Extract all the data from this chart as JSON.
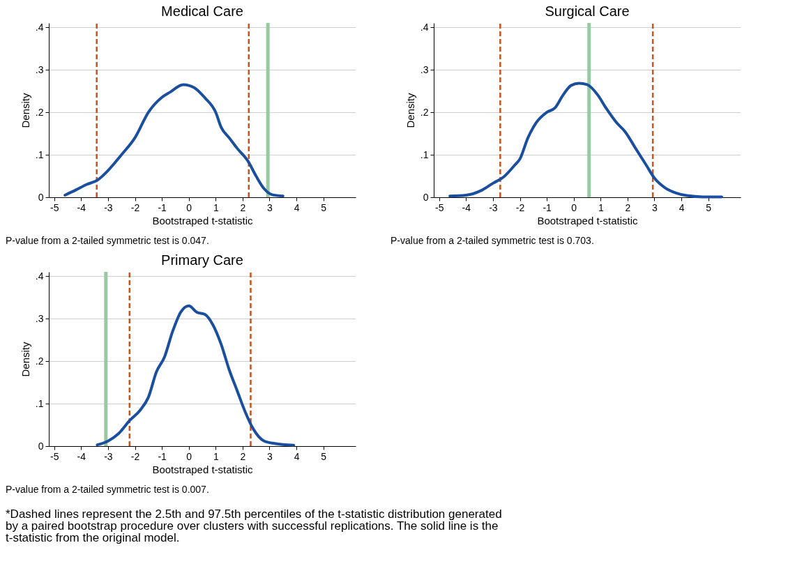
{
  "chart_data": [
    {
      "type": "line",
      "title": "Medical Care",
      "xlabel": "Bootstraped t-statistic",
      "ylabel": "Density",
      "grid": "y",
      "xlim": [
        -5.2,
        6.2
      ],
      "ylim": [
        0,
        0.41
      ],
      "xticks": [
        -5,
        -4,
        -3,
        -2,
        -1,
        0,
        1,
        2,
        3,
        4,
        5
      ],
      "yticks": [
        {
          "value": 0,
          "label": "0"
        },
        {
          "value": 0.1,
          "label": ".1"
        },
        {
          "value": 0.2,
          "label": ".2"
        },
        {
          "value": 0.3,
          "label": ".3"
        },
        {
          "value": 0.4,
          "label": ".4"
        }
      ],
      "x": [
        -4.6,
        -4.2,
        -3.8,
        -3.4,
        -3,
        -2.5,
        -2,
        -1.5,
        -1,
        -0.7,
        -0.2,
        0.2,
        0.6,
        1,
        1.2,
        1.5,
        1.8,
        2.2,
        2.5,
        2.8,
        3.1,
        3.5
      ],
      "series": [
        {
          "color": "#1a4fa0",
          "values": [
            0.005,
            0.017,
            0.03,
            0.04,
            0.063,
            0.1,
            0.14,
            0.2,
            0.235,
            0.247,
            0.265,
            0.258,
            0.234,
            0.2,
            0.165,
            0.14,
            0.115,
            0.085,
            0.05,
            0.02,
            0.006,
            0.003
          ]
        }
      ],
      "ref_lines": [
        {
          "axis": "x",
          "value": -3.42,
          "color": "#c8531c",
          "line_style": "dashed"
        },
        {
          "axis": "x",
          "value": 2.23,
          "color": "#c8531c",
          "line_style": "dashed"
        },
        {
          "axis": "x",
          "value": 2.94,
          "color": "#98c9a3",
          "line_style": "solid"
        }
      ],
      "annotations": [
        "P-value from a 2-tailed symmetric test is  0.047."
      ]
    },
    {
      "type": "line",
      "title": "Surgical Care",
      "xlabel": "Bootstraped t-statistic",
      "ylabel": "Density",
      "grid": "y",
      "xlim": [
        -5.2,
        6.2
      ],
      "ylim": [
        0,
        0.41
      ],
      "xticks": [
        -5,
        -4,
        -3,
        -2,
        -1,
        0,
        1,
        2,
        3,
        4,
        5
      ],
      "yticks": [
        {
          "value": 0,
          "label": "0"
        },
        {
          "value": 0.1,
          "label": ".1"
        },
        {
          "value": 0.2,
          "label": ".2"
        },
        {
          "value": 0.3,
          "label": ".3"
        },
        {
          "value": 0.4,
          "label": ".4"
        }
      ],
      "x": [
        -4.6,
        -4,
        -3.4,
        -3,
        -2.6,
        -2.2,
        -2,
        -1.7,
        -1.4,
        -1,
        -0.7,
        -0.4,
        -0.1,
        0.2,
        0.5,
        0.9,
        1.2,
        1.6,
        1.9,
        2.3,
        2.7,
        3,
        3.4,
        3.8,
        4.2,
        4.8,
        5.5
      ],
      "series": [
        {
          "color": "#1a4fa0",
          "values": [
            0.003,
            0.005,
            0.017,
            0.033,
            0.048,
            0.075,
            0.09,
            0.14,
            0.175,
            0.2,
            0.21,
            0.24,
            0.263,
            0.268,
            0.265,
            0.24,
            0.21,
            0.175,
            0.155,
            0.115,
            0.075,
            0.045,
            0.022,
            0.01,
            0.004,
            0.001,
            0.001
          ]
        }
      ],
      "ref_lines": [
        {
          "axis": "x",
          "value": -2.73,
          "color": "#c8531c",
          "line_style": "dashed"
        },
        {
          "axis": "x",
          "value": 2.94,
          "color": "#c8531c",
          "line_style": "dashed"
        },
        {
          "axis": "x",
          "value": 0.57,
          "color": "#98c9a3",
          "line_style": "solid"
        }
      ],
      "annotations": [
        "P-value from a 2-tailed symmetric test is  0.703."
      ]
    },
    {
      "type": "line",
      "title": "Primary Care",
      "xlabel": "Bootstraped t-statistic",
      "ylabel": "Density",
      "grid": "y",
      "xlim": [
        -5.2,
        6.2
      ],
      "ylim": [
        0,
        0.41
      ],
      "xticks": [
        -5,
        -4,
        -3,
        -2,
        -1,
        0,
        1,
        2,
        3,
        4,
        5
      ],
      "yticks": [
        {
          "value": 0,
          "label": "0"
        },
        {
          "value": 0.1,
          "label": ".1"
        },
        {
          "value": 0.2,
          "label": ".2"
        },
        {
          "value": 0.3,
          "label": ".3"
        },
        {
          "value": 0.4,
          "label": ".4"
        }
      ],
      "x": [
        -3.4,
        -3,
        -2.6,
        -2.2,
        -1.8,
        -1.5,
        -1.2,
        -0.9,
        -0.6,
        -0.3,
        0,
        0.3,
        0.6,
        0.9,
        1.2,
        1.5,
        1.8,
        2.1,
        2.4,
        2.8,
        3.2,
        3.9
      ],
      "series": [
        {
          "color": "#1a4fa0",
          "values": [
            0.003,
            0.012,
            0.03,
            0.06,
            0.085,
            0.115,
            0.175,
            0.21,
            0.27,
            0.315,
            0.33,
            0.315,
            0.31,
            0.285,
            0.24,
            0.18,
            0.13,
            0.08,
            0.04,
            0.012,
            0.006,
            0.002
          ]
        }
      ],
      "ref_lines": [
        {
          "axis": "x",
          "value": -2.2,
          "color": "#c8531c",
          "line_style": "dashed"
        },
        {
          "axis": "x",
          "value": 2.3,
          "color": "#c8531c",
          "line_style": "dashed"
        },
        {
          "axis": "x",
          "value": -3.08,
          "color": "#98c9a3",
          "line_style": "solid"
        }
      ],
      "annotations": [
        "P-value from a 2-tailed symmetric test is  0.007.",
        "*Dashed lines represent the 2.5th and 97.5th percentiles of the  t-statistic distribution generated by a paired bootstrap procedure over clusters with  successful replications. The solid line is the t-statistic from the original model."
      ]
    }
  ]
}
